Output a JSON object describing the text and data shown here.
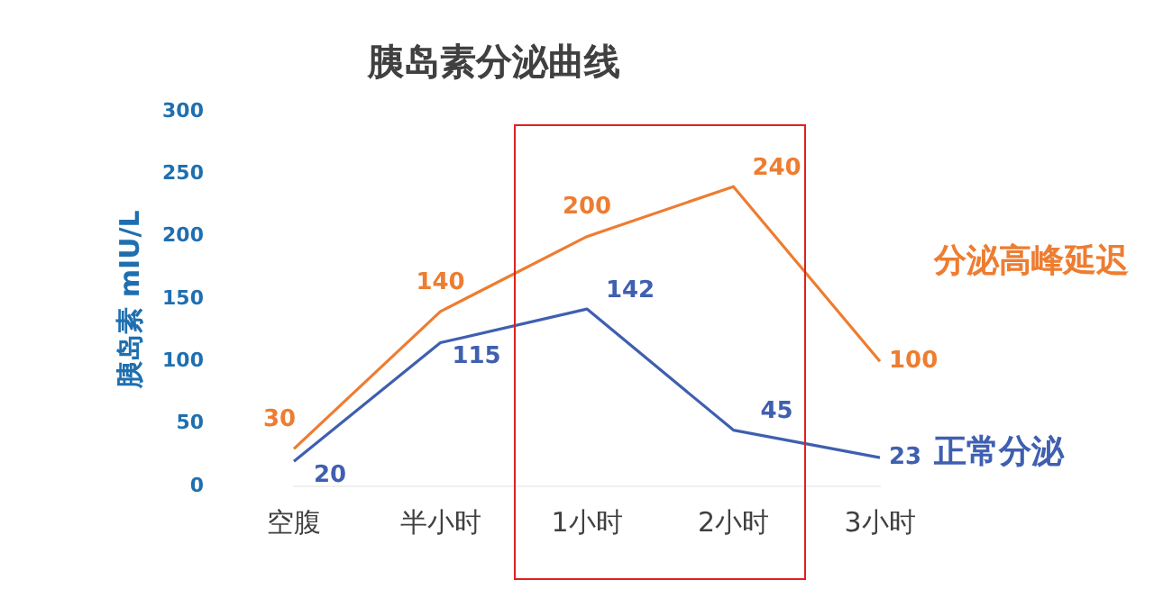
{
  "chart_data": {
    "type": "line",
    "title": "胰岛素分泌曲线",
    "ylabel": "胰岛素 mIU/L",
    "categories": [
      "空腹",
      "半小时",
      "1小时",
      "2小时",
      "3小时"
    ],
    "series": [
      {
        "name": "分泌高峰延迟",
        "color": "#ed7d31",
        "values": [
          30,
          140,
          200,
          240,
          100
        ]
      },
      {
        "name": "正常分泌",
        "color": "#3f5fb0",
        "values": [
          20,
          115,
          142,
          45,
          23
        ]
      }
    ],
    "ylim": [
      0,
      300
    ],
    "yticks": [
      0,
      50,
      100,
      150,
      200,
      250,
      300
    ],
    "grid": false,
    "legend": false,
    "marker": "none",
    "line_style": "solid",
    "data_labels": true
  }
}
